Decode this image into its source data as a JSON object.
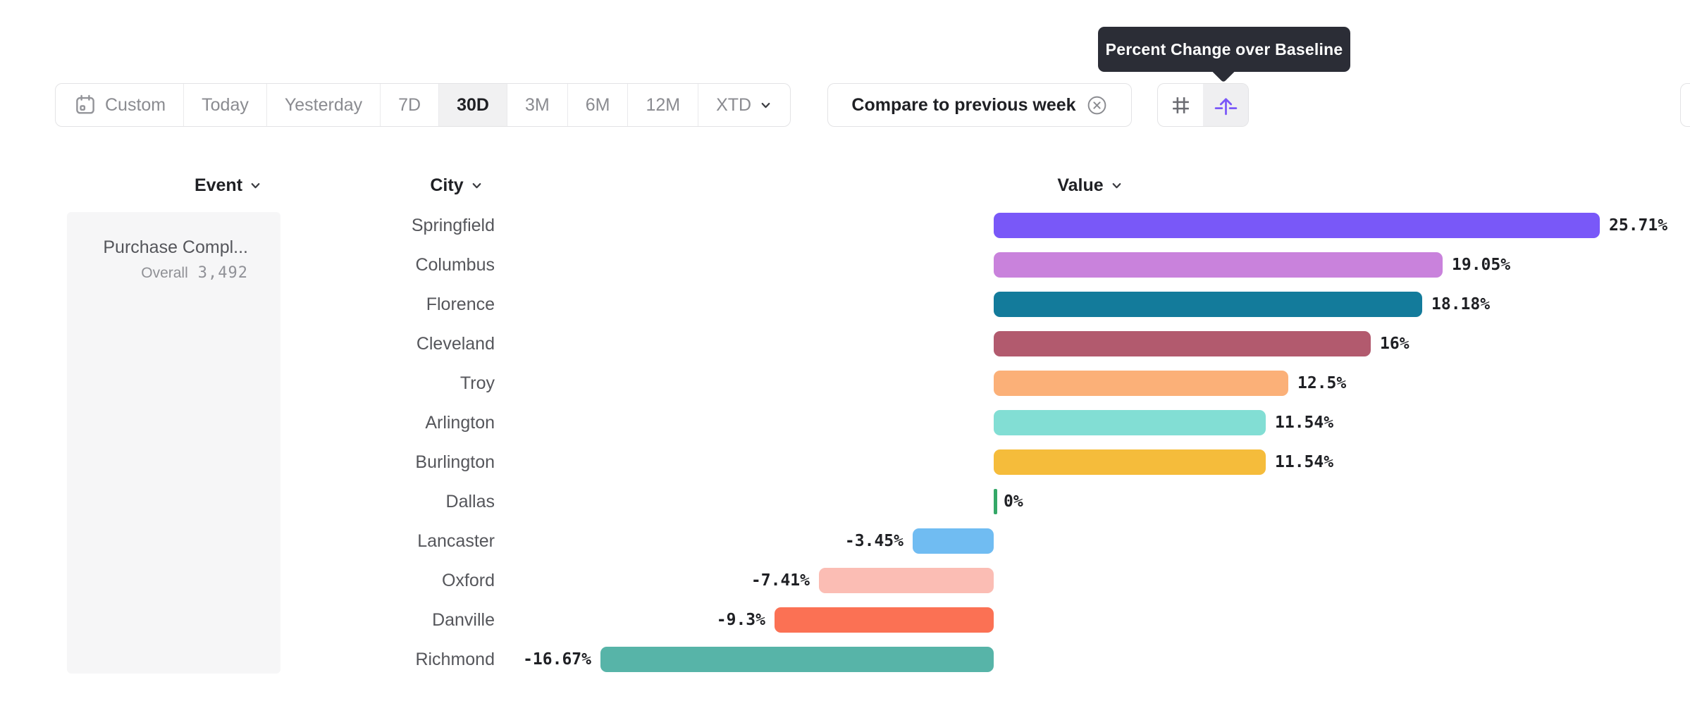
{
  "accent_color": "#7a58f8",
  "tooltip": {
    "text": "Percent Change over Baseline",
    "background": "#2b2d36"
  },
  "toolbar": {
    "date_ranges": [
      {
        "label": "Custom",
        "icon": "calendar-icon",
        "selected": false
      },
      {
        "label": "Today",
        "selected": false
      },
      {
        "label": "Yesterday",
        "selected": false
      },
      {
        "label": "7D",
        "selected": false
      },
      {
        "label": "30D",
        "selected": true
      },
      {
        "label": "3M",
        "selected": false
      },
      {
        "label": "6M",
        "selected": false
      },
      {
        "label": "12M",
        "selected": false
      },
      {
        "label": "XTD",
        "selected": false,
        "chevron": true
      }
    ],
    "compare_chip": {
      "label": "Compare to previous week",
      "close_icon": "circled-x-icon"
    },
    "view_toggle": {
      "buttons": [
        {
          "icon": "grid-hash-icon",
          "selected": false
        },
        {
          "icon": "baseline-arrow-icon",
          "selected": true
        }
      ]
    }
  },
  "columns": {
    "event": "Event",
    "city": "City",
    "value": "Value"
  },
  "event_panel": {
    "event_name": "Purchase Compl...",
    "metric_label": "Overall",
    "metric_value": "3,492"
  },
  "chart_data": {
    "type": "bar",
    "orientation": "horizontal",
    "unit": "percent",
    "category_axis_label": "City",
    "value_axis_label": "Value",
    "baseline": 0,
    "xlim": [
      -16.67,
      25.71
    ],
    "grid": false,
    "categories": [
      "Springfield",
      "Columbus",
      "Florence",
      "Cleveland",
      "Troy",
      "Arlington",
      "Burlington",
      "Dallas",
      "Lancaster",
      "Oxford",
      "Danville",
      "Richmond"
    ],
    "values": [
      25.71,
      19.05,
      18.18,
      16,
      12.5,
      11.54,
      11.54,
      0,
      -3.45,
      -7.41,
      -9.3,
      -16.67
    ],
    "labels": [
      "25.71%",
      "19.05%",
      "18.18%",
      "16%",
      "12.5%",
      "11.54%",
      "11.54%",
      "0%",
      "-3.45%",
      "-7.41%",
      "-9.3%",
      "-16.67%"
    ],
    "colors": [
      "#7958f8",
      "#c982dc",
      "#137b9b",
      "#b25a6e",
      "#fbb078",
      "#82ded4",
      "#f5bc3b",
      "#34a868",
      "#70bcf2",
      "#fbbdb4",
      "#fb7154",
      "#57b4a8"
    ]
  }
}
